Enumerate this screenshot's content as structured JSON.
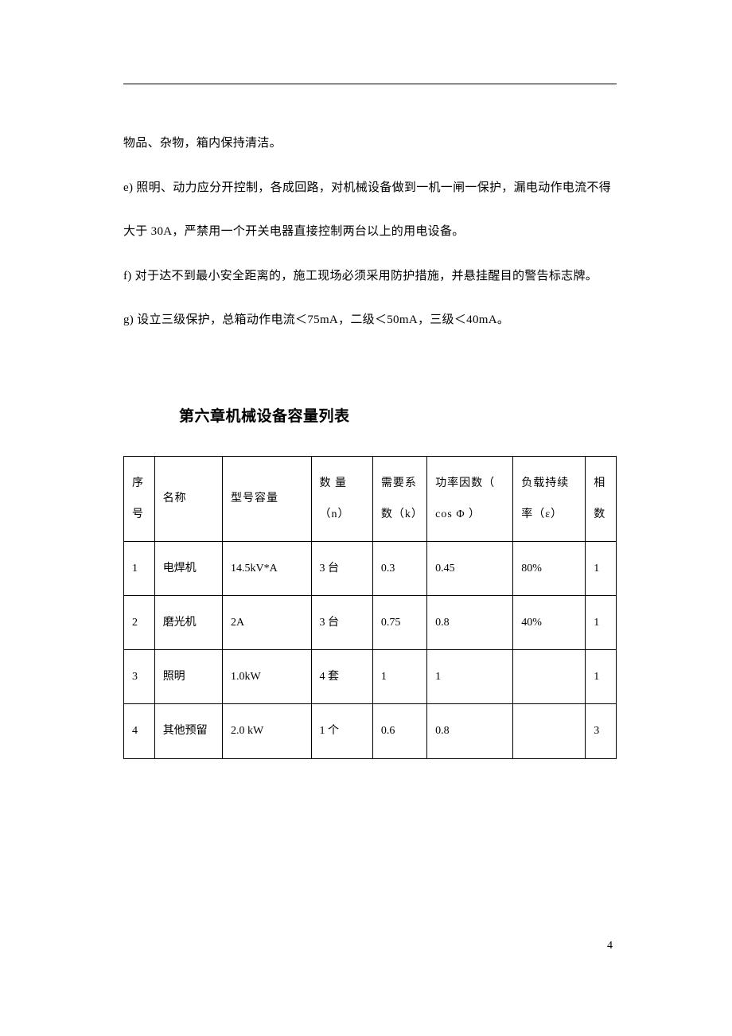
{
  "paragraphs": {
    "p1": "物品、杂物，箱内保持清洁。",
    "p2": "e) 照明、动力应分开控制，各成回路，对机械设备做到一机一闸一保护，漏电动作电流不得",
    "p3": "大于 30A，严禁用一个开关电器直接控制两台以上的用电设备。",
    "p4": "f) 对于达不到最小安全距离的，施工现场必须采用防护措施，并悬挂醒目的警告标志牌。",
    "p5": "g) 设立三级保护，总箱动作电流＜75mA，二级＜50mA，三级＜40mA。"
  },
  "chapterTitle": "第六章机械设备容量列表",
  "table": {
    "headers": {
      "seq": "序号",
      "name": "名称",
      "model": "型号容量",
      "qty": "数  量（n）",
      "coeff": "需要系 数（k）",
      "power": "功率因数（ cos Φ ）",
      "load": "负载持续率（ε）",
      "phase": "相数"
    },
    "rows": [
      {
        "seq": "1",
        "name": "电焊机",
        "model": "14.5kV*A",
        "qty": "3 台",
        "coeff": "0.3",
        "power": "0.45",
        "load": "80%",
        "phase": "1"
      },
      {
        "seq": "2",
        "name": "磨光机",
        "model": "2A",
        "qty": "3 台",
        "coeff": "0.75",
        "power": "0.8",
        "load": "40%",
        "phase": "1"
      },
      {
        "seq": "3",
        "name": "照明",
        "model": "1.0kW",
        "qty": "4 套",
        "coeff": "1",
        "power": "1",
        "load": "",
        "phase": "1"
      },
      {
        "seq": "4",
        "name": "其他预留",
        "model": "2.0 kW",
        "qty": "1 个",
        "coeff": "0.6",
        "power": "0.8",
        "load": "",
        "phase": "3"
      }
    ]
  },
  "pageNumber": "4",
  "styling": {
    "backgroundColor": "#ffffff",
    "textColor": "#000000",
    "borderColor": "#000000",
    "bodyFontSize": 15,
    "titleFontSize": 19,
    "tableFontSize": 14,
    "pageWidth": 920,
    "pageHeight": 1302
  }
}
